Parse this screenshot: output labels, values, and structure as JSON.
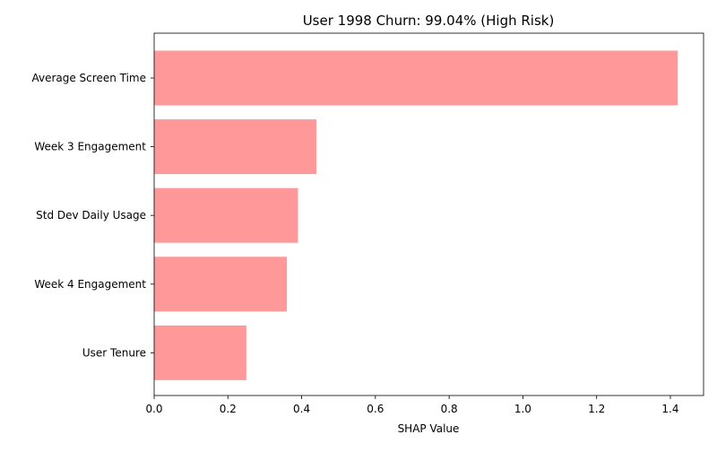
{
  "chart_data": {
    "type": "bar",
    "orientation": "horizontal",
    "title": "User 1998 Churn: 99.04% (High Risk)",
    "xlabel": "SHAP Value",
    "ylabel": "",
    "categories": [
      "Average Screen Time",
      "Week 3 Engagement",
      "Std Dev Daily Usage",
      "Week 4 Engagement",
      "User Tenure"
    ],
    "values": [
      1.42,
      0.44,
      0.39,
      0.36,
      0.25
    ],
    "xlim": [
      0,
      1.49
    ],
    "xticks": [
      0.0,
      0.2,
      0.4,
      0.6,
      0.8,
      1.0,
      1.2,
      1.4
    ],
    "xtick_labels": [
      "0.0",
      "0.2",
      "0.4",
      "0.6",
      "0.8",
      "1.0",
      "1.2",
      "1.4"
    ],
    "grid": false,
    "legend": "none",
    "colors": {
      "bar": "#ff9999",
      "axis": "#000000",
      "background": "#ffffff"
    }
  }
}
